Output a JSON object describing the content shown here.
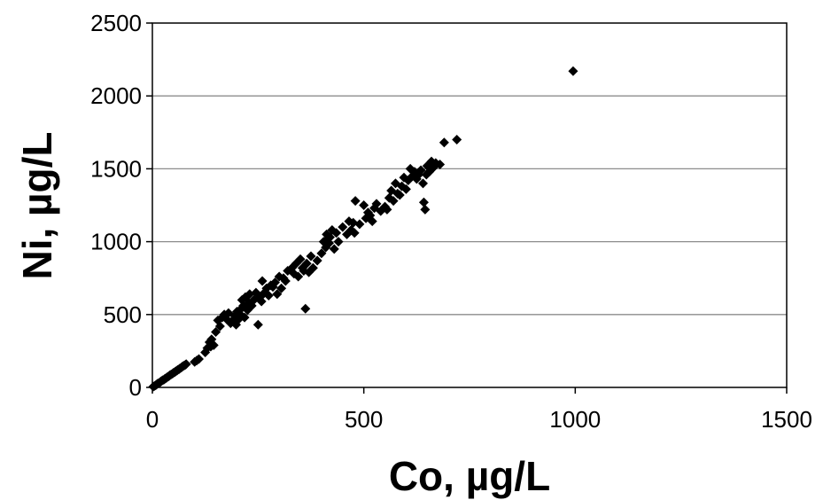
{
  "chart_data": {
    "type": "scatter",
    "title": "",
    "xlabel": "Co, µg/L",
    "ylabel": "Ni, µg/L",
    "xlim": [
      0,
      1500
    ],
    "ylim": [
      0,
      2500
    ],
    "xticks": [
      0,
      500,
      1000,
      1500
    ],
    "yticks": [
      0,
      500,
      1000,
      1500,
      2000,
      2500
    ],
    "xtick_labels": [
      "0",
      "500",
      "1000",
      "1500"
    ],
    "ytick_labels": [
      "0",
      "500",
      "1000",
      "1500",
      "2000",
      "2500"
    ],
    "grid": "horizontal major gridlines",
    "legend": "none",
    "marker": "diamond",
    "marker_color": "#000000",
    "series": [
      {
        "x": [
          2,
          5,
          8,
          10,
          12,
          15,
          18,
          20,
          22,
          25,
          28,
          30,
          33,
          35,
          38,
          40,
          42,
          45,
          48,
          50,
          53,
          55,
          58,
          60,
          63,
          65,
          68,
          70,
          72,
          75,
          78,
          80,
          100,
          105,
          110,
          125,
          130,
          135,
          138,
          140,
          145,
          150,
          155,
          160,
          165,
          170,
          175,
          180,
          185,
          190,
          195,
          198,
          200,
          205,
          208,
          210,
          212,
          215,
          218,
          220,
          225,
          228,
          230,
          235,
          240,
          245,
          250,
          255,
          258,
          260,
          265,
          270,
          275,
          280,
          285,
          290,
          295,
          300,
          305,
          310,
          315,
          320,
          330,
          335,
          340,
          345,
          350,
          355,
          358,
          362,
          365,
          370,
          375,
          380,
          390,
          400,
          405,
          410,
          412,
          415,
          418,
          420,
          425,
          430,
          435,
          440,
          450,
          460,
          465,
          470,
          475,
          478,
          480,
          490,
          500,
          505,
          510,
          515,
          520,
          525,
          530,
          540,
          550,
          555,
          560,
          565,
          570,
          575,
          580,
          585,
          590,
          595,
          600,
          605,
          610,
          615,
          620,
          625,
          630,
          635,
          640,
          642,
          645,
          648,
          650,
          655,
          660,
          665,
          670,
          680,
          690,
          720,
          995
        ],
        "y": [
          5,
          10,
          15,
          20,
          25,
          30,
          35,
          40,
          45,
          50,
          55,
          60,
          65,
          70,
          75,
          80,
          85,
          90,
          95,
          100,
          105,
          110,
          115,
          120,
          125,
          130,
          135,
          140,
          145,
          150,
          155,
          160,
          175,
          185,
          195,
          240,
          270,
          310,
          280,
          330,
          290,
          380,
          460,
          420,
          480,
          500,
          470,
          510,
          440,
          460,
          490,
          430,
          520,
          470,
          500,
          540,
          600,
          560,
          480,
          620,
          530,
          580,
          640,
          560,
          600,
          650,
          430,
          620,
          590,
          730,
          650,
          680,
          630,
          700,
          690,
          720,
          640,
          760,
          680,
          750,
          730,
          800,
          820,
          780,
          850,
          760,
          880,
          820,
          800,
          540,
          850,
          790,
          900,
          820,
          870,
          920,
          1000,
          960,
          1050,
          1020,
          990,
          1030,
          1080,
          950,
          1060,
          1000,
          1100,
          1050,
          1140,
          1080,
          1130,
          1060,
          1280,
          1120,
          1250,
          1160,
          1200,
          1180,
          1140,
          1230,
          1260,
          1210,
          1240,
          1220,
          1300,
          1350,
          1280,
          1400,
          1330,
          1320,
          1380,
          1440,
          1360,
          1420,
          1500,
          1450,
          1480,
          1430,
          1460,
          1490,
          1400,
          1270,
          1220,
          1460,
          1520,
          1480,
          1550,
          1510,
          1540,
          1530,
          1680,
          1700,
          2170
        ]
      }
    ]
  }
}
